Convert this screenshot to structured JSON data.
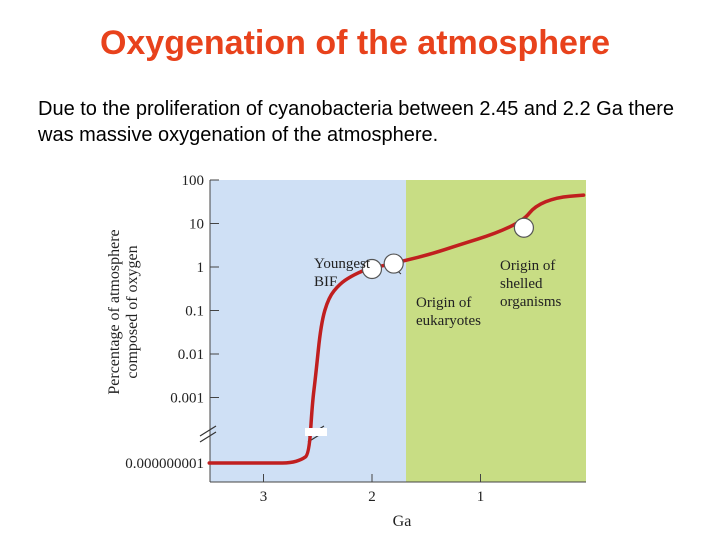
{
  "slide": {
    "title": "Oxygenation of the atmosphere",
    "body": "Due to the proliferation of cyanobacteria between 2.45 and 2.2 Ga there was massive oxygenation of the atmosphere."
  },
  "chart_data": {
    "type": "line",
    "title": "",
    "xlabel": "Ga",
    "ylabel": [
      "Percentage of atmosphere",
      "composed of oxygen"
    ],
    "x_scale": "reversed",
    "y_scale": "log",
    "xlim": [
      3.5,
      0
    ],
    "ylim": [
      1e-09,
      100
    ],
    "x_ticks": [
      {
        "value": 3,
        "label": "3"
      },
      {
        "value": 2,
        "label": "2"
      },
      {
        "value": 1,
        "label": "1"
      }
    ],
    "y_ticks": [
      {
        "value": 100,
        "label": "100"
      },
      {
        "value": 10,
        "label": "10"
      },
      {
        "value": 1,
        "label": "1"
      },
      {
        "value": 0.1,
        "label": "0.1"
      },
      {
        "value": 0.01,
        "label": "0.01"
      },
      {
        "value": 0.001,
        "label": "0.001"
      },
      {
        "value": 1e-09,
        "label": "0.000000001"
      }
    ],
    "axis_break": true,
    "background_regions": [
      {
        "from": 3.5,
        "to": 2.45,
        "color": "#cfe0f5"
      },
      {
        "from": 2.45,
        "to": 0,
        "color": "#c8dd84"
      }
    ],
    "series": [
      {
        "color": "#c01f1f",
        "points": [
          [
            3.5,
            1e-09
          ],
          [
            3.2,
            1e-09
          ],
          [
            2.9,
            1e-09
          ],
          [
            2.75,
            1e-09
          ],
          [
            2.65,
            2e-09
          ],
          [
            2.58,
            6e-09
          ],
          [
            2.55,
            0.0003
          ],
          [
            2.52,
            0.003
          ],
          [
            2.47,
            0.05
          ],
          [
            2.4,
            0.2
          ],
          [
            2.3,
            0.4
          ],
          [
            2.2,
            0.6
          ],
          [
            2.05,
            0.9
          ],
          [
            1.95,
            1.0
          ],
          [
            1.7,
            1.4
          ],
          [
            1.45,
            2.0
          ],
          [
            1.2,
            3.2
          ],
          [
            0.85,
            6.0
          ],
          [
            0.6,
            12
          ],
          [
            0.5,
            25
          ],
          [
            0.3,
            40
          ],
          [
            0.05,
            45
          ]
        ]
      }
    ],
    "annotations": [
      {
        "text": [
          "Youngest",
          "BIF"
        ],
        "x": 2.0,
        "y": 0.9,
        "marker": true
      },
      {
        "text": [
          "Origin of",
          "eukaryotes"
        ],
        "x": 1.8,
        "y": 1.2,
        "marker": true
      },
      {
        "text": [
          "Origin of",
          "shelled",
          "organisms"
        ],
        "x": 0.6,
        "y": 8,
        "marker": true
      }
    ],
    "grid": false,
    "legend": "none"
  }
}
